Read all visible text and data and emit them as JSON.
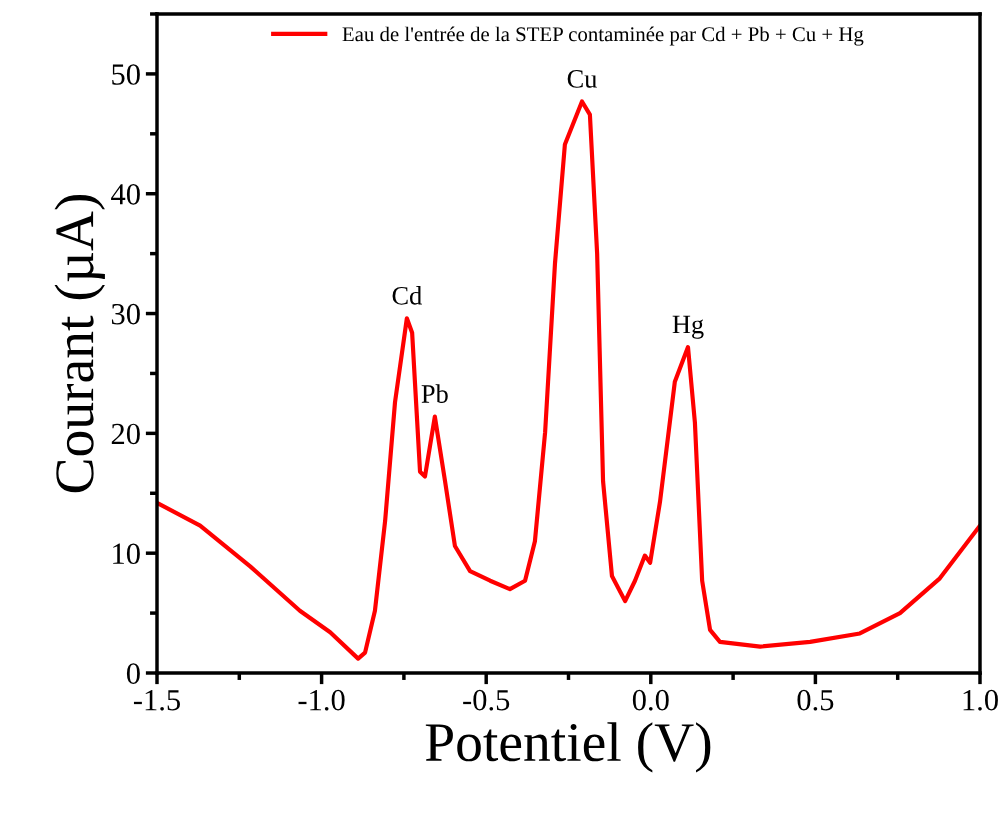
{
  "chart_data": {
    "type": "line",
    "xlabel": "Potentiel (V)",
    "ylabel": "Courant (µA)",
    "xlim": [
      -1.5,
      1.0
    ],
    "xticks": [
      -1.5,
      {
        "value": -1,
        "label": "-1.0"
      },
      -0.5,
      {
        "value": 0,
        "label": "0.0"
      },
      0.5,
      {
        "value": 1,
        "label": "1.0"
      }
    ],
    "ylim": [
      0,
      55
    ],
    "yticks": [
      0,
      10,
      20,
      30,
      40,
      50
    ],
    "legend": "top",
    "grid": false,
    "marker": "none",
    "line_style": "solid",
    "series": [
      {
        "name": "Eau de l'entrée de la STEP contaminée par Cd + Pb + Cu + Hg",
        "color": "#ff0000",
        "x": [
          -1.5,
          -1.369,
          -1.217,
          -1.066,
          -0.974,
          -0.889,
          -0.868,
          -0.838,
          -0.807,
          -0.777,
          -0.741,
          -0.725,
          -0.701,
          -0.686,
          -0.656,
          -0.625,
          -0.595,
          -0.549,
          -0.488,
          -0.428,
          -0.382,
          -0.352,
          -0.321,
          -0.291,
          -0.261,
          -0.209,
          -0.185,
          -0.163,
          -0.145,
          -0.118,
          -0.078,
          -0.048,
          -0.018,
          -0.002,
          0.028,
          0.073,
          0.113,
          0.134,
          0.156,
          0.18,
          0.21,
          0.332,
          0.484,
          0.635,
          0.757,
          0.878,
          1.0
        ],
        "values": [
          14.2,
          12.3,
          8.9,
          5.2,
          3.4,
          1.2,
          1.7,
          5.2,
          12.7,
          22.6,
          29.6,
          28.4,
          16.8,
          16.4,
          21.4,
          16.0,
          10.6,
          8.5,
          7.7,
          7.0,
          7.7,
          11.0,
          20.1,
          34.2,
          44.1,
          47.7,
          46.6,
          35.0,
          16.0,
          8.1,
          6.0,
          7.7,
          9.8,
          9.2,
          14.3,
          24.3,
          27.2,
          20.9,
          7.7,
          3.6,
          2.6,
          2.2,
          2.6,
          3.3,
          5.0,
          7.9,
          12.3
        ]
      }
    ],
    "annotations": [
      {
        "text": "Cd",
        "x": -0.741,
        "y": 29.6
      },
      {
        "text": "Pb",
        "x": -0.656,
        "y": 21.4
      },
      {
        "text": "Cu",
        "x": -0.209,
        "y": 47.7
      },
      {
        "text": "Hg",
        "x": 0.113,
        "y": 27.2
      }
    ]
  }
}
